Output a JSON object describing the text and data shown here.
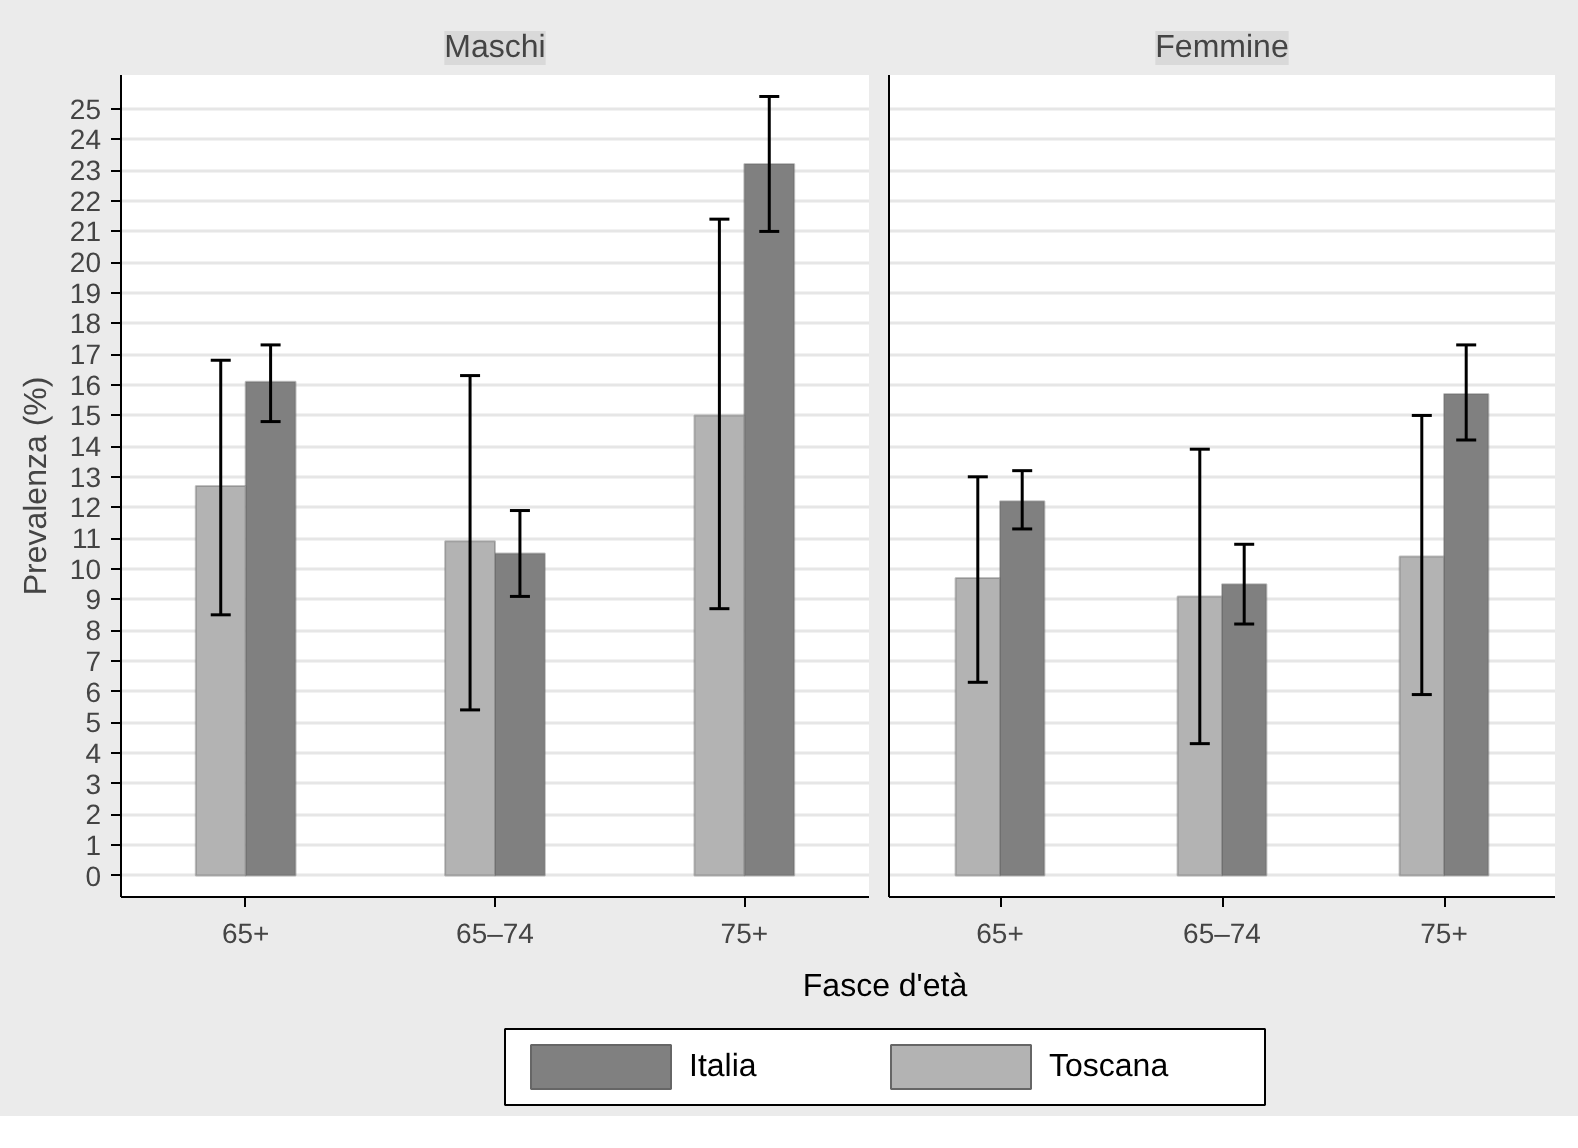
{
  "chart_data": [
    {
      "type": "bar",
      "title": "Maschi",
      "ylabel": "Prevalenza (%)",
      "xlabel": "Fasce d'età",
      "categories": [
        "65+",
        "65–74",
        "75+"
      ],
      "series": [
        {
          "name": "Italia",
          "color": "#808080",
          "values": [
            16.1,
            10.5,
            23.2
          ],
          "errors": [
            [
              14.8,
              17.3
            ],
            [
              9.1,
              11.9
            ],
            [
              21.0,
              25.4
            ]
          ]
        },
        {
          "name": "Toscana",
          "color": "#b3b3b3",
          "values": [
            12.7,
            10.9,
            15.0
          ],
          "errors": [
            [
              8.5,
              16.8
            ],
            [
              5.4,
              16.3
            ],
            [
              8.7,
              21.4
            ]
          ]
        }
      ],
      "ylim": [
        -0.7,
        26.1
      ],
      "yticks": [
        0,
        1,
        2,
        3,
        4,
        5,
        6,
        7,
        8,
        9,
        10,
        11,
        12,
        13,
        14,
        15,
        16,
        17,
        18,
        19,
        20,
        21,
        22,
        23,
        24,
        25
      ],
      "grid": "y",
      "legend": "bottom"
    },
    {
      "type": "bar",
      "title": "Femmine",
      "categories": [
        "65+",
        "65–74",
        "75+"
      ],
      "series": [
        {
          "name": "Italia",
          "color": "#808080",
          "values": [
            12.2,
            9.5,
            15.7
          ],
          "errors": [
            [
              11.3,
              13.2
            ],
            [
              8.2,
              10.8
            ],
            [
              14.2,
              17.3
            ]
          ]
        },
        {
          "name": "Toscana",
          "color": "#b3b3b3",
          "values": [
            9.7,
            9.1,
            10.4
          ],
          "errors": [
            [
              6.3,
              13.0
            ],
            [
              4.3,
              13.9
            ],
            [
              5.9,
              15.0
            ]
          ]
        }
      ],
      "ylim": [
        -0.7,
        26.1
      ],
      "yticks": [
        0,
        1,
        2,
        3,
        4,
        5,
        6,
        7,
        8,
        9,
        10,
        11,
        12,
        13,
        14,
        15,
        16,
        17,
        18,
        19,
        20,
        21,
        22,
        23,
        24,
        25
      ],
      "grid": "y",
      "tick_labels": "x",
      "legend": "bottom"
    }
  ]
}
